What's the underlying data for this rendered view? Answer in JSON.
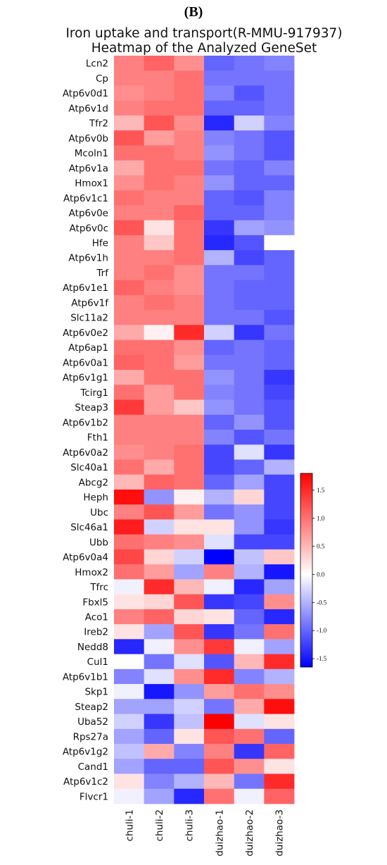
{
  "panel_label": "(B)",
  "chart_data": {
    "type": "heatmap",
    "title": "Iron uptake and transport(R-MMU-917937)",
    "subtitle": "Heatmap of the Analyzed GeneSet",
    "columns": [
      "chuli-1",
      "chuli-2",
      "chuli-3",
      "duizhao-1",
      "duizhao-2",
      "duizhao-3"
    ],
    "rows": [
      "Lcn2",
      "Cp",
      "Atp6v0d1",
      "Atp6v1d",
      "Tfr2",
      "Atp6v0b",
      "Mcoln1",
      "Atp6v1a",
      "Hmox1",
      "Atp6v1c1",
      "Atp6v0e",
      "Atp6v0c",
      "Hfe",
      "Atp6v1h",
      "Trf",
      "Atp6v1e1",
      "Atp6v1f",
      "Slc11a2",
      "Atp6v0e2",
      "Atp6ap1",
      "Atp6v0a1",
      "Atp6v1g1",
      "Tcirg1",
      "Steap3",
      "Atp6v1b2",
      "Fth1",
      "Atp6v0a2",
      "Slc40a1",
      "Abcg2",
      "Heph",
      "Ubc",
      "Slc46a1",
      "Ubb",
      "Atp6v0a4",
      "Hmox2",
      "Tfrc",
      "Fbxl5",
      "Aco1",
      "Ireb2",
      "Nedd8",
      "Cul1",
      "Atp6v1b1",
      "Skp1",
      "Steap2",
      "Uba52",
      "Rps27a",
      "Atp6v1g2",
      "Cand1",
      "Atp6v1c2",
      "Flvcr1"
    ],
    "values": [
      [
        0.9,
        1.1,
        0.8,
        -1.0,
        -0.9,
        -0.8
      ],
      [
        0.9,
        0.9,
        1.0,
        -0.9,
        -0.9,
        -0.9
      ],
      [
        0.8,
        0.9,
        1.0,
        -0.8,
        -1.1,
        -0.9
      ],
      [
        0.9,
        1.0,
        1.0,
        -1.0,
        -1.0,
        -0.9
      ],
      [
        0.5,
        1.2,
        0.8,
        -1.4,
        -0.3,
        -0.8
      ],
      [
        1.2,
        0.7,
        0.9,
        -0.8,
        -0.9,
        -1.1
      ],
      [
        1.0,
        1.0,
        0.9,
        -0.7,
        -0.9,
        -1.1
      ],
      [
        0.6,
        1.0,
        1.0,
        -0.9,
        -1.0,
        -0.8
      ],
      [
        0.8,
        1.0,
        0.9,
        -0.7,
        -1.0,
        -1.0
      ],
      [
        1.0,
        0.9,
        0.9,
        -1.0,
        -1.1,
        -0.8
      ],
      [
        0.9,
        0.9,
        1.1,
        -1.0,
        -1.0,
        -0.8
      ],
      [
        1.2,
        0.2,
        1.0,
        -1.3,
        -0.6,
        -0.7
      ],
      [
        0.9,
        0.4,
        1.0,
        -1.4,
        -1.1,
        0.0
      ],
      [
        0.9,
        0.9,
        1.0,
        -0.5,
        -1.2,
        -1.0
      ],
      [
        0.9,
        1.0,
        0.8,
        -0.9,
        -0.9,
        -1.0
      ],
      [
        1.1,
        0.9,
        0.8,
        -0.9,
        -1.0,
        -1.0
      ],
      [
        0.9,
        1.0,
        0.9,
        -0.9,
        -1.0,
        -1.0
      ],
      [
        0.9,
        0.9,
        0.9,
        -0.9,
        -0.9,
        -1.1
      ],
      [
        0.6,
        0.1,
        1.5,
        -0.3,
        -1.3,
        -0.9
      ],
      [
        1.0,
        1.0,
        0.8,
        -1.0,
        -0.9,
        -1.0
      ],
      [
        1.1,
        1.0,
        0.7,
        -0.9,
        -0.9,
        -1.0
      ],
      [
        0.6,
        1.0,
        1.0,
        -0.7,
        -0.9,
        -1.3
      ],
      [
        1.0,
        0.7,
        1.0,
        -0.8,
        -0.9,
        -1.2
      ],
      [
        1.4,
        0.7,
        0.4,
        -0.7,
        -0.9,
        -1.1
      ],
      [
        0.9,
        0.9,
        0.9,
        -1.0,
        -0.7,
        -1.1
      ],
      [
        0.9,
        0.9,
        0.9,
        -0.8,
        -1.1,
        -0.9
      ],
      [
        0.8,
        0.9,
        1.0,
        -1.2,
        -0.2,
        -1.3
      ],
      [
        1.0,
        0.6,
        1.0,
        -1.2,
        -1.0,
        -0.5
      ],
      [
        0.5,
        1.1,
        1.0,
        -1.0,
        -0.6,
        -1.2
      ],
      [
        1.7,
        -0.7,
        0.1,
        -0.5,
        0.3,
        -1.2
      ],
      [
        0.9,
        1.2,
        0.7,
        -0.9,
        -0.7,
        -1.2
      ],
      [
        1.6,
        -0.3,
        0.2,
        0.2,
        -0.7,
        -1.3
      ],
      [
        1.0,
        0.9,
        0.8,
        -0.2,
        -1.2,
        -1.2
      ],
      [
        1.3,
        0.3,
        -0.3,
        -1.7,
        -0.4,
        0.4
      ],
      [
        1.0,
        0.7,
        -0.6,
        0.9,
        -0.5,
        -1.5
      ],
      [
        -0.1,
        1.5,
        0.5,
        -0.1,
        -1.4,
        -0.6
      ],
      [
        0.2,
        0.3,
        1.2,
        -1.3,
        -1.2,
        0.8
      ],
      [
        0.9,
        1.1,
        0.3,
        0.2,
        -1.0,
        -1.4
      ],
      [
        0.2,
        -0.6,
        1.2,
        -1.3,
        -0.9,
        1.0
      ],
      [
        -1.4,
        -0.1,
        0.8,
        1.4,
        -0.1,
        -0.6
      ],
      [
        0.0,
        -0.9,
        -0.2,
        -1.1,
        0.5,
        1.5
      ],
      [
        -0.8,
        -0.2,
        0.8,
        1.5,
        -0.8,
        -0.5
      ],
      [
        -0.1,
        -1.5,
        -0.7,
        0.7,
        1.0,
        0.8
      ],
      [
        -0.6,
        -0.6,
        -0.3,
        -0.9,
        0.6,
        1.7
      ],
      [
        -0.3,
        -1.3,
        -0.4,
        1.8,
        -0.2,
        0.2
      ],
      [
        -0.6,
        -1.0,
        0.2,
        1.2,
        1.0,
        -1.0
      ],
      [
        -0.4,
        0.6,
        -0.8,
        0.9,
        -1.3,
        1.1
      ],
      [
        -0.6,
        -1.0,
        -1.0,
        1.2,
        0.8,
        0.2
      ],
      [
        0.2,
        -0.8,
        -0.5,
        0.5,
        -0.9,
        1.5
      ],
      [
        -0.1,
        -0.6,
        -1.4,
        1.0,
        -0.1,
        1.1
      ]
    ],
    "colorbar": {
      "min": -1.65,
      "max": 1.8,
      "ticks": [
        1.5,
        1.0,
        0.5,
        0.0,
        -0.5,
        -1.0,
        -1.5
      ],
      "tick_labels": [
        "1.5",
        "1.0",
        "0.5",
        "0.0",
        "-0.5",
        "-1.0",
        "-1.5"
      ],
      "colors": {
        "low": "#0000ff",
        "mid": "#ffffff",
        "high": "#ff0000"
      }
    }
  }
}
